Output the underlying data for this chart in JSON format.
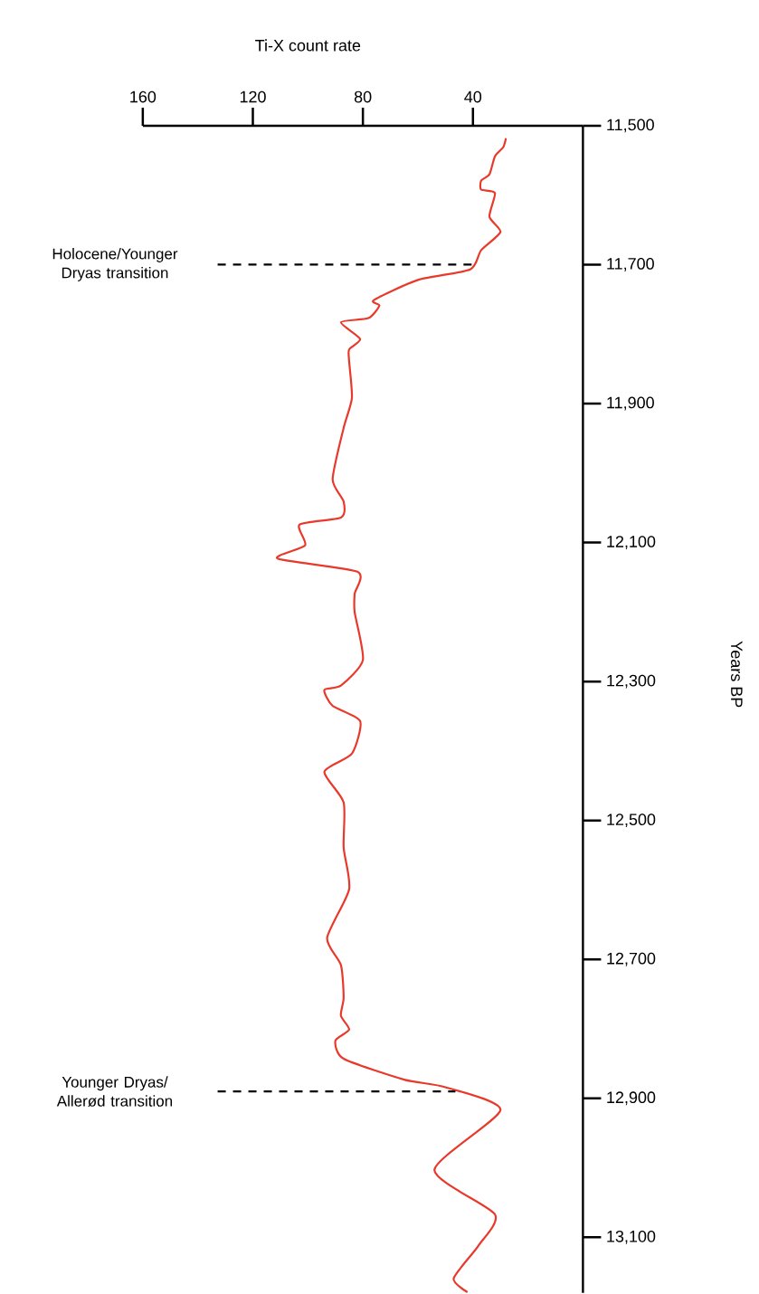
{
  "chart_data": {
    "type": "line",
    "orientation": "horizontal",
    "xlabel": "Ti-X count rate",
    "ylabel": "Years BP",
    "xlim": [
      160,
      0
    ],
    "xticks": [
      160,
      120,
      80,
      40
    ],
    "ylim": [
      13180,
      11500
    ],
    "yticks": [
      {
        "value": 11500,
        "label": "11,500"
      },
      {
        "value": 11700,
        "label": "11,700"
      },
      {
        "value": 11900,
        "label": "11,900"
      },
      {
        "value": 12100,
        "label": "12,100"
      },
      {
        "value": 12300,
        "label": "12,300"
      },
      {
        "value": 12500,
        "label": "12,500"
      },
      {
        "value": 12700,
        "label": "12,700"
      },
      {
        "value": 12900,
        "label": "12,900"
      },
      {
        "value": 13100,
        "label": "13,100"
      }
    ],
    "x": [
      11518,
      11531,
      11544,
      11570,
      11579,
      11592,
      11597,
      11631,
      11653,
      11679,
      11707,
      11722,
      11751,
      11759,
      11777,
      11783,
      11807,
      11822,
      11839,
      11892,
      11935,
      12009,
      12041,
      12064,
      12074,
      12104,
      12123,
      12142,
      12174,
      12200,
      12269,
      12306,
      12312,
      12335,
      12357,
      12404,
      12430,
      12474,
      12539,
      12599,
      12669,
      12708,
      12755,
      12781,
      12801,
      12817,
      12843,
      12873,
      12884,
      12917,
      13003,
      13067,
      13112,
      13159,
      13179
    ],
    "series": [
      {
        "color": "#e8392b",
        "values": [
          28,
          29,
          32,
          34,
          37,
          37,
          32,
          34,
          30,
          37,
          41,
          60,
          76,
          74,
          78,
          88,
          81,
          85,
          85,
          84,
          87,
          91,
          87,
          88,
          103,
          101,
          111,
          82,
          83,
          83,
          80,
          88,
          94,
          91,
          81,
          84,
          94,
          87,
          87,
          85,
          93,
          88,
          87,
          88,
          85,
          90,
          87,
          65,
          50,
          30,
          54,
          32,
          38,
          47,
          42
        ]
      }
    ],
    "ref_lines": [
      {
        "axis": "y",
        "value": 11700,
        "label": "Holocene/Younger Dryas transition",
        "color": "#000000",
        "line_style": "dashed"
      },
      {
        "axis": "y",
        "value": 12890,
        "label": "Younger Dryas/ Allerød transition",
        "color": "#000000",
        "line_style": "dashed"
      }
    ],
    "marker": "none",
    "line_style": "solid"
  }
}
